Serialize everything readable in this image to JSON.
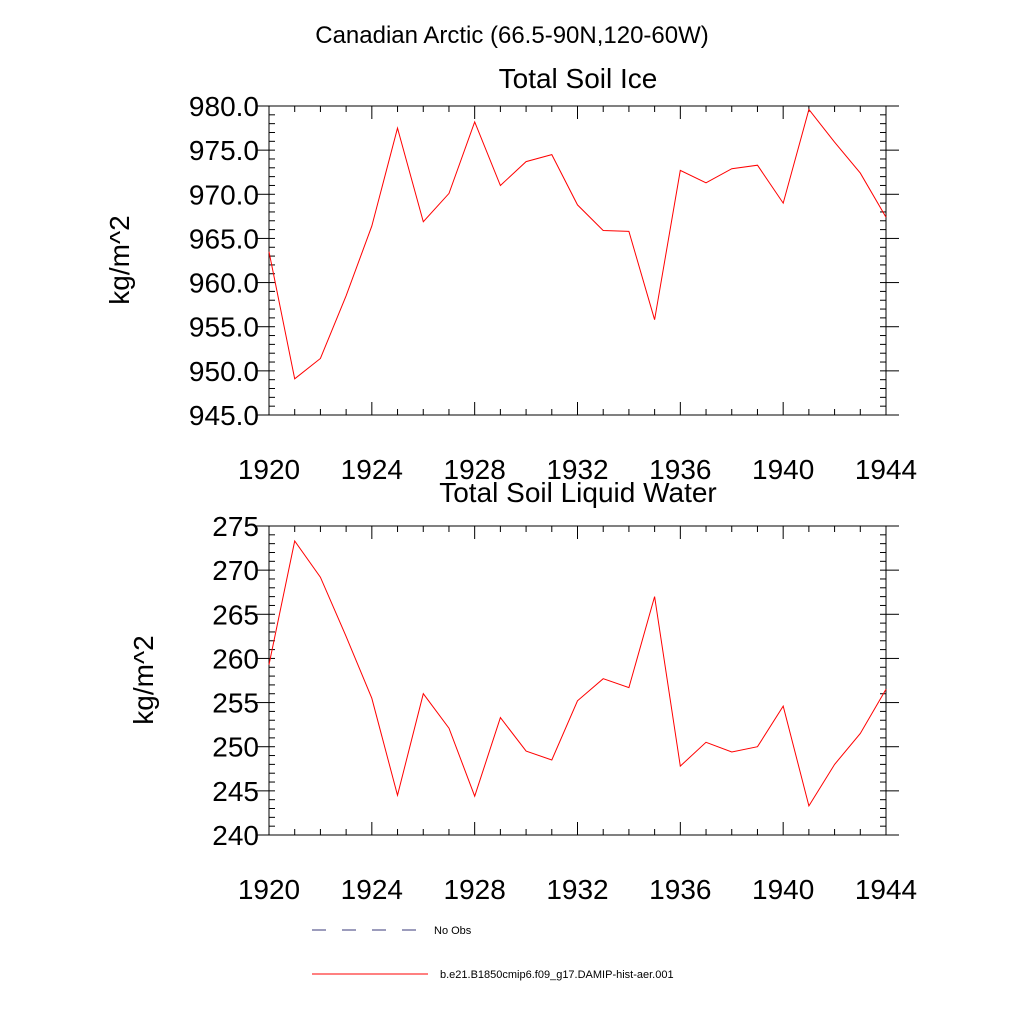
{
  "figure": {
    "title": "Canadian Arctic (66.5-90N,120-60W)"
  },
  "legend": [
    {
      "label": "No Obs",
      "style": "dashed",
      "color": "#3a3a7a"
    },
    {
      "label": "b.e21.B1850cmip6.f09_g17.DAMIP-hist-aer.001",
      "style": "solid",
      "color": "#ff0000"
    }
  ],
  "chart_data": [
    {
      "type": "line",
      "title": "Total Soil Ice",
      "ylabel": "kg/m^2",
      "xlabel": "",
      "xlim": [
        1920,
        1944
      ],
      "ylim": [
        945,
        980
      ],
      "xticks": [
        1920,
        1924,
        1928,
        1932,
        1936,
        1940,
        1944
      ],
      "xtick_labels": [
        "1920",
        "1924",
        "1928",
        "1932",
        "1936",
        "1940",
        "1944"
      ],
      "yticks": [
        945,
        950,
        955,
        960,
        965,
        970,
        975,
        980
      ],
      "ytick_labels": [
        "945.0",
        "950.0",
        "955.0",
        "960.0",
        "965.0",
        "970.0",
        "975.0",
        "980.0"
      ],
      "grid": false,
      "series": [
        {
          "name": "b.e21.B1850cmip6.f09_g17.DAMIP-hist-aer.001",
          "color": "#ff0000",
          "x": [
            1920,
            1921,
            1922,
            1923,
            1924,
            1925,
            1926,
            1927,
            1928,
            1929,
            1930,
            1931,
            1932,
            1933,
            1934,
            1935,
            1936,
            1937,
            1938,
            1939,
            1940,
            1941,
            1942,
            1943,
            1944
          ],
          "y": [
            963.5,
            949.1,
            951.4,
            958.5,
            966.4,
            977.5,
            966.9,
            970.1,
            978.2,
            971.0,
            973.7,
            974.5,
            968.8,
            965.9,
            965.8,
            955.8,
            972.7,
            971.3,
            972.9,
            973.3,
            969.0,
            979.6,
            975.9,
            972.4,
            967.4
          ]
        }
      ]
    },
    {
      "type": "line",
      "title": "Total Soil Liquid Water",
      "ylabel": "kg/m^2",
      "xlabel": "",
      "xlim": [
        1920,
        1944
      ],
      "ylim": [
        240,
        275
      ],
      "xticks": [
        1920,
        1924,
        1928,
        1932,
        1936,
        1940,
        1944
      ],
      "xtick_labels": [
        "1920",
        "1924",
        "1928",
        "1932",
        "1936",
        "1940",
        "1944"
      ],
      "yticks": [
        240,
        245,
        250,
        255,
        260,
        265,
        270,
        275
      ],
      "ytick_labels": [
        "240",
        "245",
        "250",
        "255",
        "260",
        "265",
        "270",
        "275"
      ],
      "grid": false,
      "series": [
        {
          "name": "b.e21.B1850cmip6.f09_g17.DAMIP-hist-aer.001",
          "color": "#ff0000",
          "x": [
            1920,
            1921,
            1922,
            1923,
            1924,
            1925,
            1926,
            1927,
            1928,
            1929,
            1930,
            1931,
            1932,
            1933,
            1934,
            1935,
            1936,
            1937,
            1938,
            1939,
            1940,
            1941,
            1942,
            1943,
            1944
          ],
          "y": [
            259.3,
            273.3,
            269.2,
            262.5,
            255.5,
            244.5,
            256.0,
            252.1,
            244.4,
            253.3,
            249.5,
            248.5,
            255.2,
            257.7,
            256.7,
            267.0,
            247.8,
            250.5,
            249.4,
            250.0,
            254.6,
            243.3,
            248.0,
            251.5,
            256.5
          ]
        }
      ]
    }
  ]
}
